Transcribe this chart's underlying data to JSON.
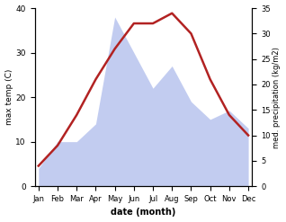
{
  "months": [
    "Jan",
    "Feb",
    "Mar",
    "Apr",
    "May",
    "Jun",
    "Jul",
    "Aug",
    "Sep",
    "Oct",
    "Nov",
    "Dec"
  ],
  "temp": [
    4,
    8,
    14,
    21,
    27,
    32,
    32,
    34,
    30,
    21,
    14,
    10
  ],
  "precip": [
    4,
    10,
    10,
    14,
    38,
    30,
    22,
    27,
    19,
    15,
    17,
    13
  ],
  "temp_color": "#b22222",
  "precip_color": "#b8c4ee",
  "ylabel_left": "max temp (C)",
  "ylabel_right": "med. precipitation (kg/m2)",
  "xlabel": "date (month)",
  "ylim_left": [
    0,
    40
  ],
  "ylim_right": [
    0,
    35
  ],
  "yticks_left": [
    0,
    10,
    20,
    30,
    40
  ],
  "yticks_right": [
    0,
    5,
    10,
    15,
    20,
    25,
    30,
    35
  ],
  "bg_color": "#ffffff"
}
